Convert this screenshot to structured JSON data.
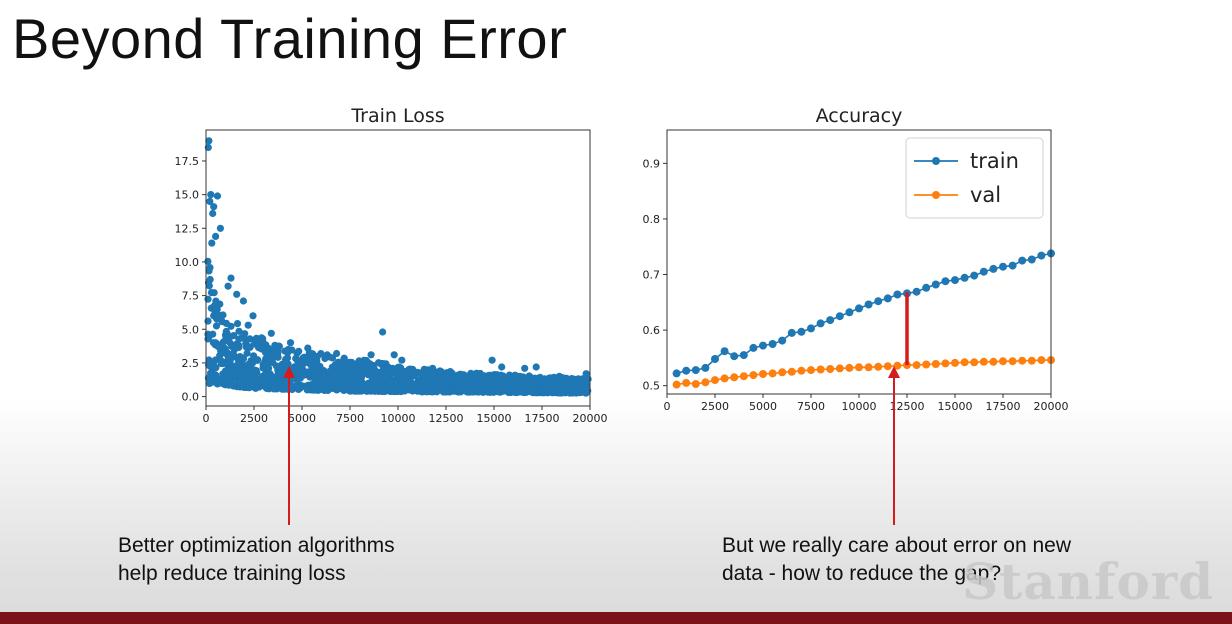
{
  "slide": {
    "title": "Beyond Training Error",
    "caption_left_line1": "Better optimization algorithms",
    "caption_left_line2": "help reduce training loss",
    "caption_right_line1": "But we really care about error on new",
    "caption_right_line2": "data - how to reduce the gap?",
    "watermark": "Stanford"
  },
  "chart_data": [
    {
      "type": "scatter",
      "title": "Train Loss",
      "xlim": [
        0,
        20000
      ],
      "ylim": [
        -0.7,
        19.8
      ],
      "xticks": [
        0,
        2500,
        5000,
        7500,
        10000,
        12500,
        15000,
        17500,
        20000
      ],
      "yticks": [
        0.0,
        2.5,
        5.0,
        7.5,
        10.0,
        12.5,
        15.0,
        17.5
      ],
      "ytick_labels": [
        "0.0",
        "2.5",
        "5.0",
        "7.5",
        "10.0",
        "12.5",
        "15.0",
        "17.5"
      ],
      "color": "#1f77b4",
      "band_upper": [
        [
          0,
          12.5
        ],
        [
          300,
          9.0
        ],
        [
          800,
          7.2
        ],
        [
          1500,
          5.6
        ],
        [
          2500,
          4.6
        ],
        [
          4000,
          3.8
        ],
        [
          6000,
          3.2
        ],
        [
          8000,
          2.8
        ],
        [
          10000,
          2.3
        ],
        [
          12500,
          1.9
        ],
        [
          15000,
          1.7
        ],
        [
          17500,
          1.5
        ],
        [
          20000,
          1.3
        ]
      ],
      "band_lower": [
        [
          0,
          1.0
        ],
        [
          2500,
          0.6
        ],
        [
          7500,
          0.4
        ],
        [
          20000,
          0.25
        ]
      ],
      "outliers": [
        [
          150,
          19.0
        ],
        [
          120,
          18.5
        ],
        [
          250,
          15.0
        ],
        [
          600,
          14.9
        ],
        [
          200,
          14.5
        ],
        [
          400,
          14.1
        ],
        [
          350,
          13.6
        ],
        [
          750,
          12.5
        ],
        [
          500,
          11.9
        ],
        [
          300,
          11.4
        ],
        [
          1300,
          8.8
        ],
        [
          1150,
          8.2
        ],
        [
          1600,
          7.6
        ],
        [
          1950,
          7.1
        ],
        [
          2450,
          6.0
        ],
        [
          2200,
          5.3
        ],
        [
          3400,
          4.7
        ],
        [
          2950,
          4.3
        ],
        [
          4400,
          4.0
        ],
        [
          5300,
          3.6
        ],
        [
          6800,
          3.2
        ],
        [
          9200,
          4.8
        ],
        [
          8600,
          3.1
        ],
        [
          10200,
          2.7
        ],
        [
          9800,
          3.1
        ],
        [
          11800,
          2.1
        ],
        [
          14900,
          2.7
        ],
        [
          15400,
          2.2
        ],
        [
          16600,
          2.1
        ],
        [
          17200,
          2.2
        ],
        [
          18400,
          1.5
        ],
        [
          19800,
          1.7
        ]
      ]
    },
    {
      "type": "line",
      "title": "Accuracy",
      "xlim": [
        0,
        20000
      ],
      "ylim": [
        0.485,
        0.96
      ],
      "xticks": [
        0,
        2500,
        5000,
        7500,
        10000,
        12500,
        15000,
        17500,
        20000
      ],
      "yticks": [
        0.5,
        0.6,
        0.7,
        0.8,
        0.9
      ],
      "ytick_labels": [
        "0.5",
        "0.6",
        "0.7",
        "0.8",
        "0.9"
      ],
      "legend_position": "top-right",
      "gap_marker": {
        "x": 12500,
        "y_low": 0.537,
        "y_high": 0.668,
        "color": "#d41c1c"
      },
      "series": [
        {
          "name": "train",
          "color": "#1f77b4",
          "x": [
            500,
            1000,
            1500,
            2000,
            2500,
            3000,
            3500,
            4000,
            4500,
            5000,
            5500,
            6000,
            6500,
            7000,
            7500,
            8000,
            8500,
            9000,
            9500,
            10000,
            10500,
            11000,
            11500,
            12000,
            12500,
            13000,
            13500,
            14000,
            14500,
            15000,
            15500,
            16000,
            16500,
            17000,
            17500,
            18000,
            18500,
            19000,
            19500,
            20000
          ],
          "values": [
            0.522,
            0.527,
            0.528,
            0.532,
            0.548,
            0.562,
            0.553,
            0.555,
            0.568,
            0.572,
            0.575,
            0.581,
            0.595,
            0.597,
            0.603,
            0.612,
            0.618,
            0.625,
            0.632,
            0.639,
            0.646,
            0.652,
            0.657,
            0.664,
            0.666,
            0.669,
            0.676,
            0.682,
            0.688,
            0.69,
            0.694,
            0.698,
            0.705,
            0.71,
            0.714,
            0.716,
            0.725,
            0.727,
            0.734,
            0.738
          ]
        },
        {
          "name": "val",
          "color": "#ff7f0e",
          "x": [
            500,
            1000,
            1500,
            2000,
            2500,
            3000,
            3500,
            4000,
            4500,
            5000,
            5500,
            6000,
            6500,
            7000,
            7500,
            8000,
            8500,
            9000,
            9500,
            10000,
            10500,
            11000,
            11500,
            12000,
            12500,
            13000,
            13500,
            14000,
            14500,
            15000,
            15500,
            16000,
            16500,
            17000,
            17500,
            18000,
            18500,
            19000,
            19500,
            20000
          ],
          "values": [
            0.502,
            0.505,
            0.503,
            0.506,
            0.51,
            0.513,
            0.515,
            0.517,
            0.519,
            0.521,
            0.522,
            0.524,
            0.525,
            0.527,
            0.528,
            0.529,
            0.53,
            0.531,
            0.532,
            0.533,
            0.533,
            0.534,
            0.535,
            0.536,
            0.537,
            0.537,
            0.538,
            0.539,
            0.54,
            0.541,
            0.542,
            0.542,
            0.543,
            0.543,
            0.544,
            0.544,
            0.545,
            0.545,
            0.546,
            0.546
          ]
        }
      ]
    }
  ]
}
